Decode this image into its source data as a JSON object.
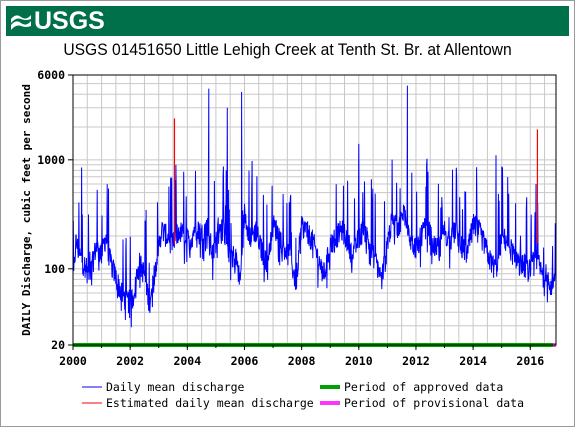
{
  "header": {
    "agency_logo_text": "USGS"
  },
  "chart_data": {
    "type": "line",
    "title": "USGS 01451650 Little Lehigh Creek at Tenth St. Br. at Allentown",
    "xlabel": "",
    "ylabel": "DAILY Discharge, cubic feet per second",
    "y_scale": "log",
    "ylim": [
      20,
      6000
    ],
    "xlim": [
      2000,
      2016.9
    ],
    "x_ticks": [
      "2000",
      "2002",
      "2004",
      "2006",
      "2008",
      "2010",
      "2012",
      "2014",
      "2016"
    ],
    "y_ticks": [
      "20",
      "100",
      "1000",
      "6000"
    ],
    "grid": true,
    "legend_placement": "bottom",
    "legend": [
      {
        "label": "Daily mean discharge",
        "color": "#0000ff",
        "style": "line"
      },
      {
        "label": "Estimated daily mean discharge",
        "color": "#ff0000",
        "style": "line"
      },
      {
        "label": "Period of approved data",
        "color": "#00a000",
        "style": "bar"
      },
      {
        "label": "Period of provisional data",
        "color": "#ff33ff",
        "style": "bar"
      }
    ],
    "series": [
      {
        "name": "Daily mean discharge",
        "color": "#0000ff",
        "x": [
          2000.0,
          2000.1,
          2000.25,
          2000.4,
          2000.6,
          2000.8,
          2001.0,
          2001.15,
          2001.3,
          2001.5,
          2001.7,
          2001.9,
          2002.1,
          2002.3,
          2002.5,
          2002.7,
          2002.9,
          2003.1,
          2003.3,
          2003.5,
          2003.7,
          2003.9,
          2004.1,
          2004.3,
          2004.5,
          2004.7,
          2004.9,
          2005.1,
          2005.3,
          2005.5,
          2005.7,
          2005.85,
          2006.0,
          2006.2,
          2006.4,
          2006.6,
          2006.8,
          2007.0,
          2007.2,
          2007.4,
          2007.6,
          2007.8,
          2008.0,
          2008.2,
          2008.4,
          2008.6,
          2008.8,
          2009.0,
          2009.2,
          2009.4,
          2009.6,
          2009.8,
          2010.0,
          2010.2,
          2010.4,
          2010.6,
          2010.8,
          2011.0,
          2011.2,
          2011.4,
          2011.6,
          2011.8,
          2012.0,
          2012.2,
          2012.4,
          2012.6,
          2012.8,
          2013.0,
          2013.2,
          2013.4,
          2013.6,
          2013.8,
          2014.0,
          2014.2,
          2014.4,
          2014.6,
          2014.8,
          2015.0,
          2015.2,
          2015.4,
          2015.6,
          2015.8,
          2016.0,
          2016.2,
          2016.4,
          2016.6,
          2016.8,
          2016.9
        ],
        "values": [
          70,
          180,
          130,
          110,
          90,
          160,
          140,
          200,
          120,
          85,
          60,
          50,
          55,
          120,
          90,
          45,
          120,
          230,
          200,
          170,
          230,
          200,
          180,
          260,
          210,
          250,
          130,
          260,
          220,
          140,
          130,
          75,
          330,
          200,
          230,
          150,
          120,
          260,
          210,
          160,
          130,
          75,
          260,
          220,
          180,
          120,
          90,
          170,
          200,
          230,
          190,
          130,
          200,
          240,
          160,
          120,
          80,
          180,
          300,
          240,
          350,
          200,
          150,
          210,
          260,
          170,
          150,
          230,
          180,
          240,
          160,
          140,
          260,
          230,
          170,
          120,
          100,
          200,
          180,
          140,
          120,
          110,
          95,
          140,
          90,
          90,
          70,
          85
        ],
        "peaks": [
          {
            "x": 2000.3,
            "value": 850
          },
          {
            "x": 2003.6,
            "value": 900
          },
          {
            "x": 2004.75,
            "value": 4500
          },
          {
            "x": 2005.4,
            "value": 3000
          },
          {
            "x": 2005.9,
            "value": 4200
          },
          {
            "x": 2010.0,
            "value": 1400
          },
          {
            "x": 2011.7,
            "value": 4800
          },
          {
            "x": 2014.8,
            "value": 1100
          },
          {
            "x": 2016.2,
            "value": 600
          }
        ]
      },
      {
        "name": "Estimated daily mean discharge",
        "color": "#ff0000",
        "peaks": [
          {
            "x": 2003.55,
            "value": 2400
          },
          {
            "x": 2016.25,
            "value": 1900
          }
        ]
      }
    ],
    "periods": [
      {
        "name": "Period of approved data",
        "color": "#00a000",
        "start": 2000.0,
        "end": 2016.8
      },
      {
        "name": "Period of provisional data",
        "color": "#ff33ff",
        "start": 2016.8,
        "end": 2016.9
      }
    ]
  }
}
